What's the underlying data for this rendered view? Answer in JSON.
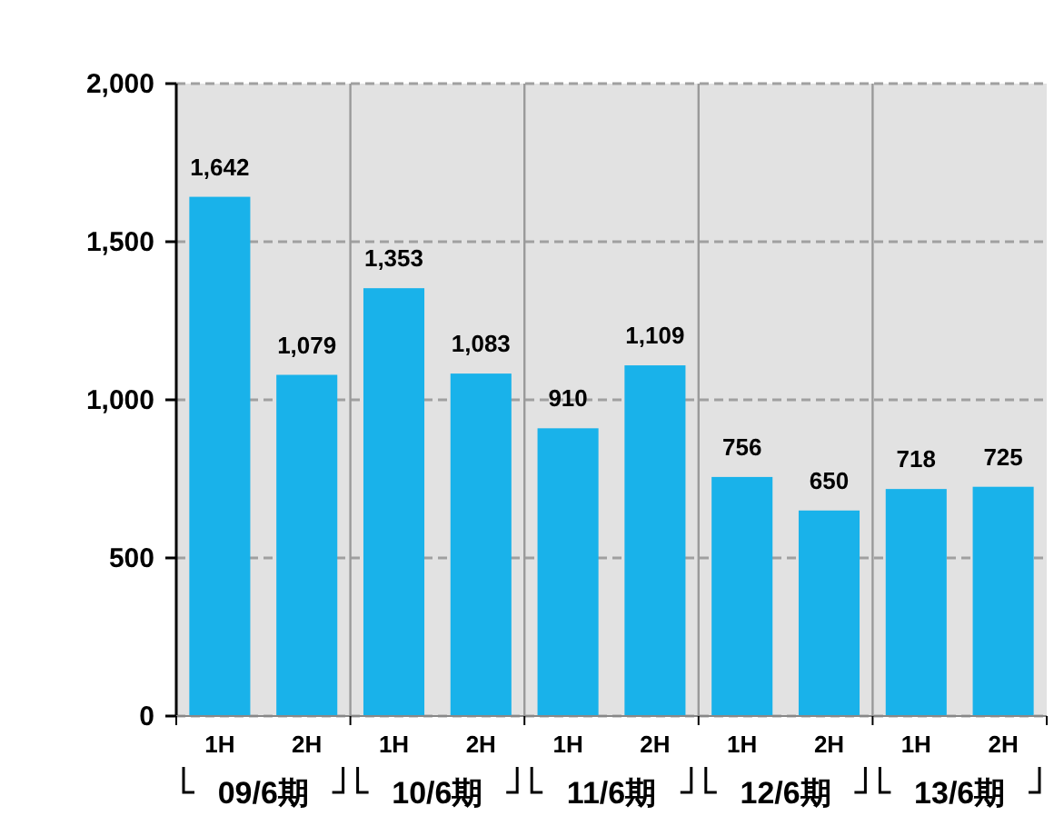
{
  "chart_data": {
    "type": "bar",
    "categories": [
      "1H",
      "2H",
      "1H",
      "2H",
      "1H",
      "2H",
      "1H",
      "2H",
      "1H",
      "2H"
    ],
    "values": [
      1642,
      1079,
      1353,
      1083,
      910,
      1109,
      756,
      650,
      718,
      725
    ],
    "color": "#19b2ea",
    "ylim": [
      0,
      2000
    ],
    "yticks": [
      {
        "value": 0,
        "label": "0"
      },
      {
        "value": 500,
        "label": "500"
      },
      {
        "value": 1000,
        "label": "1,000"
      },
      {
        "value": 1500,
        "label": "1,500"
      },
      {
        "value": 2000,
        "label": "2,000"
      }
    ],
    "value_labels": [
      "1,642",
      "1,079",
      "1,353",
      "1,083",
      "910",
      "1,109",
      "756",
      "650",
      "718",
      "725"
    ],
    "annotations": [
      "09/6期",
      "10/6期",
      "11/6期",
      "12/6期",
      "13/6期"
    ],
    "grid": true
  }
}
